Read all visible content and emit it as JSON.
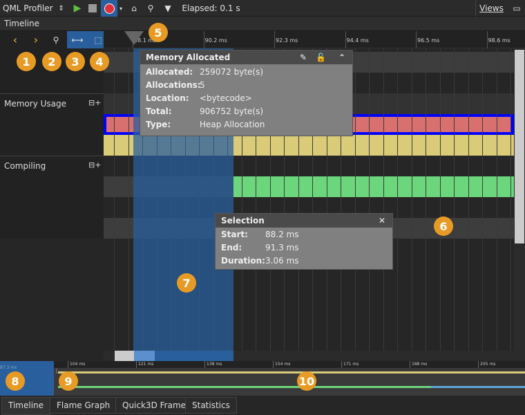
{
  "toolbar": {
    "profiler_select": "QML Profiler",
    "elapsed_label": "Elapsed:",
    "elapsed_value": "0.1 s",
    "views_label": "Views",
    "record_color": "#e0303a"
  },
  "panel_title": "Timeline",
  "ruler": {
    "ticks": [
      "88.1 ms",
      "90.2 ms",
      "92.3 ms",
      "94.4 ms",
      "96.5 ms",
      "98.6 ms"
    ]
  },
  "tracks": [
    {
      "label": ""
    },
    {
      "label": "Memory Usage"
    },
    {
      "label": "Compiling"
    }
  ],
  "memory_popup": {
    "title": "Memory Allocated",
    "rows": [
      {
        "k": "Allocated:",
        "v": "259072 byte(s)"
      },
      {
        "k": "Allocations:",
        "v": "5"
      },
      {
        "k": "Location:",
        "v": "<bytecode>"
      },
      {
        "k": "Total:",
        "v": "906752 byte(s)"
      },
      {
        "k": "Type:",
        "v": "Heap Allocation"
      }
    ]
  },
  "selection_popup": {
    "title": "Selection",
    "rows": [
      {
        "k": "Start:",
        "v": "88.2 ms"
      },
      {
        "k": "End:",
        "v": "91.3 ms"
      },
      {
        "k": "Duration:",
        "v": "3.06 ms"
      }
    ]
  },
  "overview": {
    "start_label": "87.3 ms",
    "ticks": [
      "104 ms",
      "121 ms",
      "138 ms",
      "154 ms",
      "171 ms",
      "188 ms",
      "205 ms"
    ]
  },
  "tabs": [
    "Timeline",
    "Flame Graph",
    "Quick3D Frame",
    "Statistics"
  ],
  "badges": [
    "1",
    "2",
    "3",
    "4",
    "5",
    "6",
    "7",
    "8",
    "9",
    "10"
  ],
  "colors": {
    "memory_red": "#d97070",
    "memory_yellow": "#dacb78",
    "compile_green": "#6cd67c",
    "selection_blue": "#2a5f9e",
    "badge": "#e89b24"
  }
}
